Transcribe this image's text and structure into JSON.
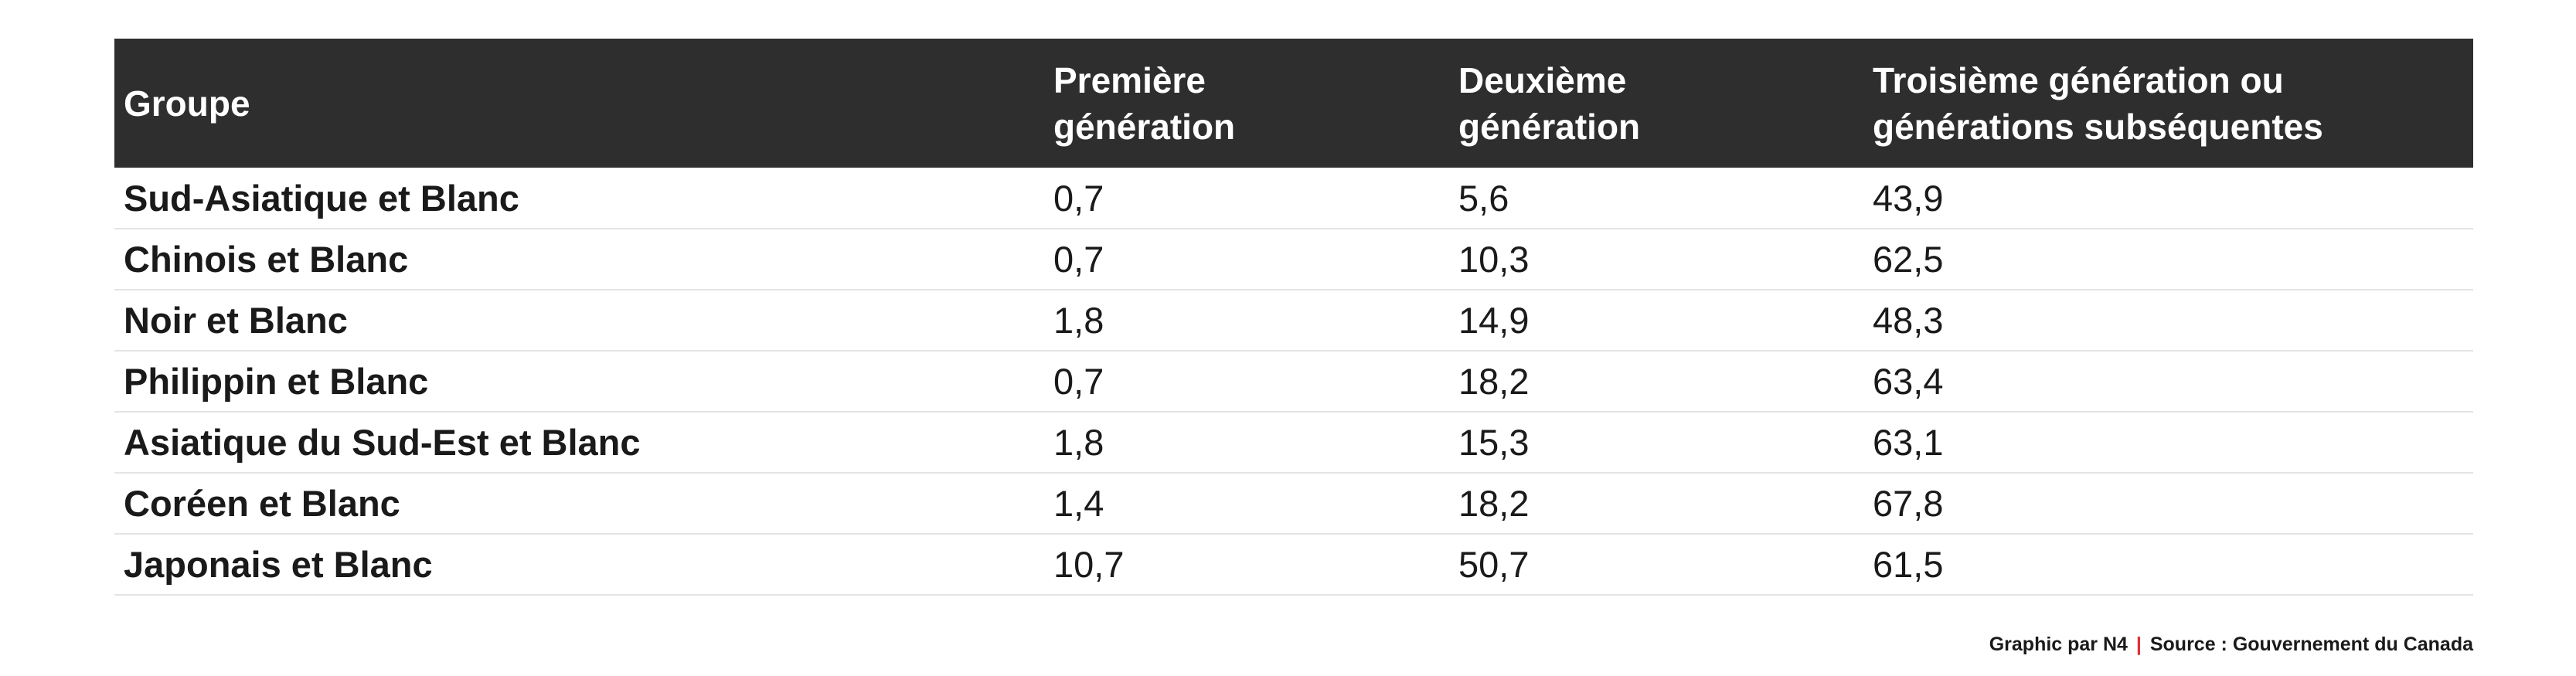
{
  "chart_data": {
    "type": "table",
    "columns": [
      "Groupe",
      "Première génération",
      "Deuxième génération",
      "Troisième génération ou générations subséquentes"
    ],
    "header_lines": [
      [
        "Groupe"
      ],
      [
        "Première",
        "génération"
      ],
      [
        "Deuxième",
        "génération"
      ],
      [
        "Troisième génération ou",
        "générations subséquentes"
      ]
    ],
    "rows": [
      [
        "Sud-Asiatique et Blanc",
        "0,7",
        "5,6",
        "43,9"
      ],
      [
        "Chinois et Blanc",
        "0,7",
        "10,3",
        "62,5"
      ],
      [
        "Noir et Blanc",
        "1,8",
        "14,9",
        "48,3"
      ],
      [
        "Philippin et Blanc",
        "0,7",
        "18,2",
        "63,4"
      ],
      [
        "Asiatique du Sud-Est et Blanc",
        "1,8",
        "15,3",
        "63,1"
      ],
      [
        "Coréen et Blanc",
        "1,4",
        "18,2",
        "67,8"
      ],
      [
        "Japonais et Blanc",
        "10,7",
        "50,7",
        "61,5"
      ]
    ]
  },
  "footer": {
    "credit": "Graphic par N4",
    "separator": "|",
    "source": "Source : Gouvernement du Canada"
  },
  "colors": {
    "header_background": "#2e2e2e",
    "header_text": "#ffffff",
    "row_divider": "#e4e4e4",
    "separator_accent": "#e0303a"
  }
}
